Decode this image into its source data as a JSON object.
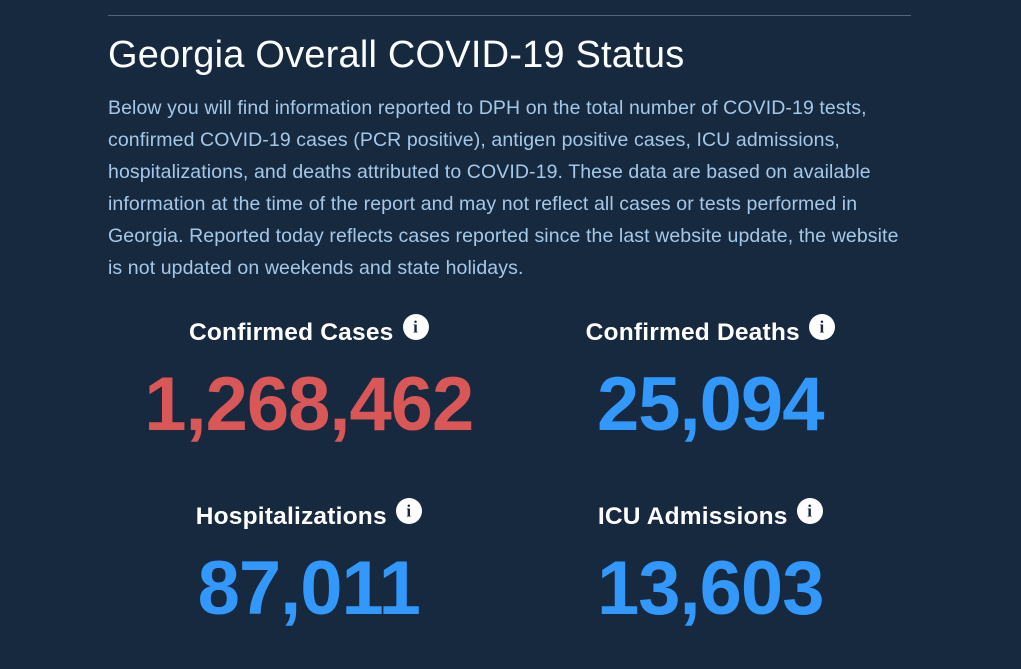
{
  "theme": {
    "background": "#16293f",
    "divider_color": "#53657c",
    "title_color": "#fbfdff",
    "paragraph_color": "#a6c8e8",
    "label_color": "#ffffff",
    "red_accent": "#d95757",
    "blue_accent": "#3398fb",
    "info_icon_bg": "#ffffff"
  },
  "icons": {
    "info_glyph": "i"
  },
  "header": {
    "title": "Georgia Overall COVID-19 Status",
    "description": "Below you will find information reported to DPH on the total number of COVID-19 tests, confirmed COVID-19 cases (PCR positive), antigen positive cases, ICU admissions, hospitalizations, and deaths attributed to COVID-19. These data are based on available information at the time of the report and may not reflect all cases or tests performed in Georgia. Reported today reflects cases reported since the last website update, the website is not updated on weekends and state holidays."
  },
  "stats": [
    {
      "label": "Confirmed Cases",
      "value": "1,268,462",
      "color": "#d95757"
    },
    {
      "label": "Confirmed Deaths",
      "value": "25,094",
      "color": "#3398fb"
    },
    {
      "label": "Hospitalizations",
      "value": "87,011",
      "color": "#3398fb"
    },
    {
      "label": "ICU Admissions",
      "value": "13,603",
      "color": "#3398fb"
    }
  ]
}
